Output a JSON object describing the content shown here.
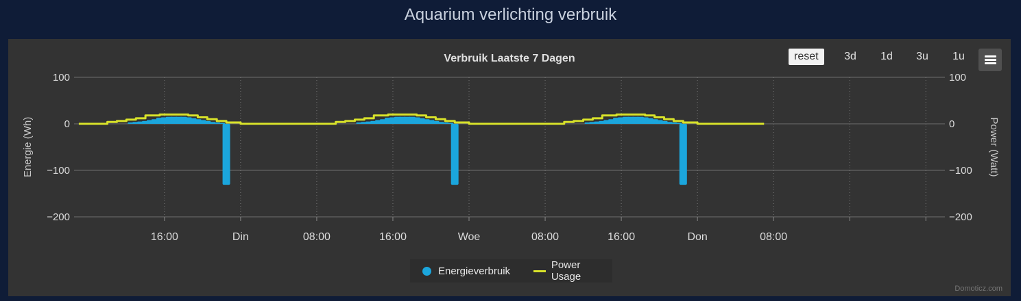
{
  "page": {
    "title": "Aquarium verlichting verbruik"
  },
  "toolbar": {
    "reset_label": "reset",
    "zoom_3d": "3d",
    "zoom_1d": "1d",
    "zoom_3u": "3u",
    "zoom_1u": "1u",
    "menu_icon": "hamburger-menu-icon"
  },
  "legend": {
    "energy_label": "Energieverbruik",
    "power_label": "Power Usage"
  },
  "credits": "Domoticz.com",
  "colors": {
    "page_bg": "#0f1c37",
    "panel_bg": "#333333",
    "energy": "#1ba6dd",
    "power": "#d8e22a",
    "grid": "#777777"
  },
  "chart_data": {
    "type": "bar",
    "title": "Verbruik Laatste 7 Dagen",
    "y_left": {
      "label": "Energie (Wh)",
      "min": -200,
      "max": 100,
      "ticks": [
        "100",
        "0",
        "−100",
        "−200"
      ]
    },
    "y_right": {
      "label": "Power (Watt)",
      "min": -200,
      "max": 100,
      "ticks": [
        "100",
        "0",
        "−100",
        "−200"
      ]
    },
    "x_unit": "hours",
    "x_range": [
      -5.5,
      86
    ],
    "x_ticks": [
      {
        "t": 4,
        "label": "16:00"
      },
      {
        "t": 12,
        "label": "Din"
      },
      {
        "t": 20,
        "label": "08:00"
      },
      {
        "t": 28,
        "label": "16:00"
      },
      {
        "t": 36,
        "label": "Woe"
      },
      {
        "t": 44,
        "label": "08:00"
      },
      {
        "t": 52,
        "label": "16:00"
      },
      {
        "t": 60,
        "label": "Don"
      },
      {
        "t": 68,
        "label": "08:00"
      },
      {
        "t": 76,
        "label": ""
      },
      {
        "t": 84,
        "label": ""
      }
    ],
    "grid": true,
    "legend_position": "bottom-center",
    "series": [
      {
        "name": "Energieverbruik",
        "kind": "bar",
        "points": [
          [
            0.5,
            3
          ],
          [
            1,
            4
          ],
          [
            1.5,
            5
          ],
          [
            2,
            6
          ],
          [
            2.5,
            8
          ],
          [
            3,
            10
          ],
          [
            3.5,
            13
          ],
          [
            4,
            14
          ],
          [
            4.5,
            15
          ],
          [
            5,
            15
          ],
          [
            5.5,
            15
          ],
          [
            6,
            15
          ],
          [
            6.5,
            14
          ],
          [
            7,
            12
          ],
          [
            7.5,
            10
          ],
          [
            8,
            8
          ],
          [
            8.5,
            6
          ],
          [
            9,
            4
          ],
          [
            9.5,
            3
          ],
          [
            10,
            2
          ],
          [
            10.5,
            -131
          ],
          [
            24.5,
            3
          ],
          [
            25,
            4
          ],
          [
            25.5,
            5
          ],
          [
            26,
            6
          ],
          [
            26.5,
            8
          ],
          [
            27,
            10
          ],
          [
            27.5,
            13
          ],
          [
            28,
            14
          ],
          [
            28.5,
            15
          ],
          [
            29,
            15
          ],
          [
            29.5,
            15
          ],
          [
            30,
            15
          ],
          [
            30.5,
            14
          ],
          [
            31,
            12
          ],
          [
            31.5,
            10
          ],
          [
            32,
            8
          ],
          [
            32.5,
            6
          ],
          [
            33,
            4
          ],
          [
            33.5,
            3
          ],
          [
            34,
            2
          ],
          [
            34.5,
            -131
          ],
          [
            48.5,
            3
          ],
          [
            49,
            4
          ],
          [
            49.5,
            5
          ],
          [
            50,
            6
          ],
          [
            50.5,
            8
          ],
          [
            51,
            10
          ],
          [
            51.5,
            13
          ],
          [
            52,
            14
          ],
          [
            52.5,
            15
          ],
          [
            53,
            15
          ],
          [
            53.5,
            15
          ],
          [
            54,
            15
          ],
          [
            54.5,
            14
          ],
          [
            55,
            12
          ],
          [
            55.5,
            10
          ],
          [
            56,
            8
          ],
          [
            56.5,
            6
          ],
          [
            57,
            4
          ],
          [
            57.5,
            3
          ],
          [
            58,
            2
          ],
          [
            58.5,
            -131
          ]
        ]
      },
      {
        "name": "Power Usage",
        "kind": "step-line",
        "points": [
          [
            -5,
            0
          ],
          [
            -2.5,
            0
          ],
          [
            -2,
            4
          ],
          [
            -1,
            6
          ],
          [
            0,
            9
          ],
          [
            1,
            12
          ],
          [
            2,
            18
          ],
          [
            3.5,
            20
          ],
          [
            6.5,
            18
          ],
          [
            7.5,
            14
          ],
          [
            8.5,
            10
          ],
          [
            9.5,
            6
          ],
          [
            10.5,
            3
          ],
          [
            12,
            0
          ],
          [
            21.5,
            0
          ],
          [
            22,
            4
          ],
          [
            23,
            6
          ],
          [
            24,
            9
          ],
          [
            25,
            12
          ],
          [
            26,
            18
          ],
          [
            27.5,
            20
          ],
          [
            30.5,
            18
          ],
          [
            31.5,
            14
          ],
          [
            32.5,
            10
          ],
          [
            33.5,
            6
          ],
          [
            34.5,
            3
          ],
          [
            36,
            0
          ],
          [
            45.5,
            0
          ],
          [
            46,
            4
          ],
          [
            47,
            6
          ],
          [
            48,
            9
          ],
          [
            49,
            12
          ],
          [
            50,
            18
          ],
          [
            51.5,
            20
          ],
          [
            54.5,
            18
          ],
          [
            55.5,
            14
          ],
          [
            56.5,
            10
          ],
          [
            57.5,
            6
          ],
          [
            58.5,
            3
          ],
          [
            60,
            0
          ],
          [
            67,
            0
          ]
        ]
      }
    ]
  }
}
